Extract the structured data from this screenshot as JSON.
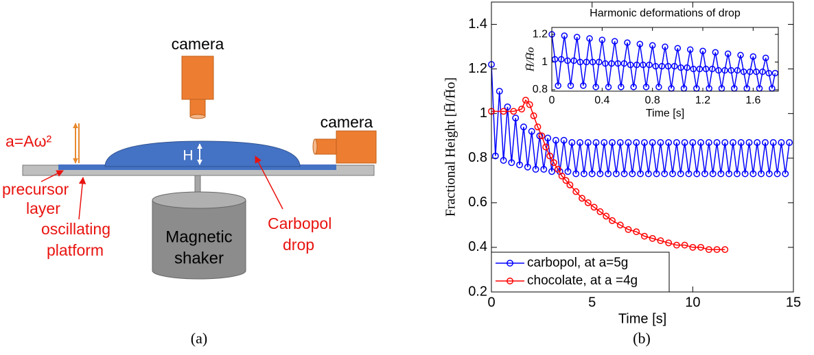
{
  "diagram": {
    "camera_top": "camera",
    "camera_side": "camera",
    "acceleration": "a=Aω²",
    "height": "H",
    "precursor_layer": [
      "precursor",
      "layer"
    ],
    "oscillating_platform": [
      "oscillating",
      "platform"
    ],
    "magnetic_shaker": [
      "Magnetic",
      "shaker"
    ],
    "carbopol_drop": [
      "Carbopol",
      "drop"
    ]
  },
  "captions": [
    "(a)",
    "(b)"
  ],
  "chart_data": [
    {
      "type": "line",
      "xlabel": "Time [s]",
      "ylabel": "Fractional Height [H̄/H̄o]",
      "xlim": [
        0,
        15
      ],
      "ylim": [
        0.2,
        1.5
      ],
      "xticks": [
        0,
        5,
        10,
        15
      ],
      "yticks": [
        0.2,
        0.4,
        0.6,
        0.8,
        1,
        1.2,
        1.4
      ],
      "legend": "lower left",
      "series": [
        {
          "name": "carbopol, at a=5g",
          "color": "#0000ff",
          "x": [
            0,
            0.2,
            0.4,
            0.6,
            0.8,
            1,
            1.2,
            1.4,
            1.6,
            1.8,
            2,
            2.2,
            2.4,
            2.6,
            2.8,
            3,
            3.2,
            3.4,
            3.6,
            3.8,
            4,
            4.2,
            4.4,
            4.6,
            4.8,
            5,
            5.2,
            5.4,
            5.6,
            5.8,
            6,
            6.2,
            6.4,
            6.6,
            6.8,
            7,
            7.2,
            7.4,
            7.6,
            7.8,
            8,
            8.2,
            8.4,
            8.6,
            8.8,
            9,
            9.2,
            9.4,
            9.6,
            9.8,
            10,
            10.2,
            10.4,
            10.6,
            10.8,
            11,
            11.2,
            11.4,
            11.6,
            11.8,
            12,
            12.2,
            12.4,
            12.6,
            12.8,
            13,
            13.2,
            13.4,
            13.6,
            13.8,
            14,
            14.2,
            14.4,
            14.6,
            14.8
          ],
          "values": [
            1.22,
            0.81,
            1.1,
            0.79,
            1.03,
            0.78,
            0.98,
            0.77,
            0.94,
            0.76,
            0.92,
            0.75,
            0.9,
            0.75,
            0.89,
            0.74,
            0.88,
            0.74,
            0.88,
            0.74,
            0.87,
            0.73,
            0.87,
            0.73,
            0.87,
            0.73,
            0.87,
            0.73,
            0.87,
            0.73,
            0.87,
            0.73,
            0.87,
            0.73,
            0.87,
            0.73,
            0.87,
            0.73,
            0.87,
            0.73,
            0.87,
            0.73,
            0.87,
            0.73,
            0.87,
            0.73,
            0.87,
            0.73,
            0.87,
            0.73,
            0.87,
            0.73,
            0.87,
            0.73,
            0.87,
            0.73,
            0.87,
            0.73,
            0.87,
            0.73,
            0.87,
            0.73,
            0.87,
            0.73,
            0.87,
            0.73,
            0.87,
            0.73,
            0.87,
            0.73,
            0.87,
            0.73,
            0.87,
            0.73,
            0.87
          ]
        },
        {
          "name": "chocolate, at a =4g",
          "color": "#ff0000",
          "x": [
            0,
            0.6,
            1.1,
            1.5,
            1.7,
            1.9,
            2.1,
            2.3,
            2.5,
            2.7,
            2.9,
            3.1,
            3.3,
            3.5,
            3.7,
            3.9,
            4.2,
            4.5,
            4.8,
            5.1,
            5.4,
            5.7,
            6,
            6.4,
            6.8,
            7.2,
            7.6,
            8,
            8.4,
            8.8,
            9.2,
            9.6,
            10,
            10.4,
            10.8,
            11.2,
            11.6
          ],
          "values": [
            1.01,
            1.01,
            1.01,
            1.02,
            1.06,
            1.04,
            0.99,
            0.94,
            0.9,
            0.85,
            0.81,
            0.78,
            0.75,
            0.72,
            0.7,
            0.68,
            0.65,
            0.62,
            0.6,
            0.58,
            0.56,
            0.54,
            0.52,
            0.5,
            0.48,
            0.47,
            0.45,
            0.44,
            0.43,
            0.42,
            0.41,
            0.41,
            0.4,
            0.4,
            0.39,
            0.39,
            0.39
          ]
        }
      ]
    },
    {
      "type": "line",
      "title": "Harmonic deformations of drop",
      "xlabel": "Time [s]",
      "ylabel": "H̄/H̄o",
      "xlim": [
        0,
        1.8
      ],
      "ylim": [
        0.79,
        1.25
      ],
      "xticks": [
        0,
        0.4,
        0.8,
        1.2,
        1.6
      ],
      "yticks": [
        0.8,
        1,
        1.2
      ],
      "series": [
        {
          "color": "#0000ff",
          "x": [
            0,
            0.025,
            0.05,
            0.075,
            0.1,
            0.125,
            0.15,
            0.175,
            0.2,
            0.225,
            0.25,
            0.275,
            0.3,
            0.325,
            0.35,
            0.375,
            0.4,
            0.425,
            0.45,
            0.475,
            0.5,
            0.525,
            0.55,
            0.575,
            0.6,
            0.625,
            0.65,
            0.675,
            0.7,
            0.725,
            0.75,
            0.775,
            0.8,
            0.825,
            0.85,
            0.875,
            0.9,
            0.925,
            0.95,
            0.975,
            1,
            1.025,
            1.05,
            1.075,
            1.1,
            1.125,
            1.15,
            1.175,
            1.2,
            1.225,
            1.25,
            1.275,
            1.3,
            1.325,
            1.35,
            1.375,
            1.4,
            1.425,
            1.45,
            1.475,
            1.5,
            1.525,
            1.55,
            1.575,
            1.6,
            1.625,
            1.65,
            1.675,
            1.7,
            1.725,
            1.75,
            1.775
          ],
          "values": [
            1.2,
            1.02,
            0.83,
            1.02,
            1.19,
            1.01,
            0.83,
            1.01,
            1.18,
            1.0,
            0.83,
            1.0,
            1.17,
            1.0,
            0.82,
            1.0,
            1.16,
            0.99,
            0.82,
            0.99,
            1.15,
            0.99,
            0.82,
            0.99,
            1.14,
            0.98,
            0.82,
            0.98,
            1.13,
            0.98,
            0.82,
            0.98,
            1.12,
            0.97,
            0.82,
            0.97,
            1.11,
            0.97,
            0.81,
            0.97,
            1.1,
            0.96,
            0.81,
            0.96,
            1.09,
            0.95,
            0.81,
            0.95,
            1.08,
            0.95,
            0.81,
            0.95,
            1.07,
            0.94,
            0.81,
            0.94,
            1.06,
            0.94,
            0.81,
            0.94,
            1.05,
            0.93,
            0.81,
            0.93,
            1.04,
            0.93,
            0.81,
            0.93,
            1.03,
            0.92,
            0.81,
            0.92
          ]
        }
      ]
    }
  ]
}
